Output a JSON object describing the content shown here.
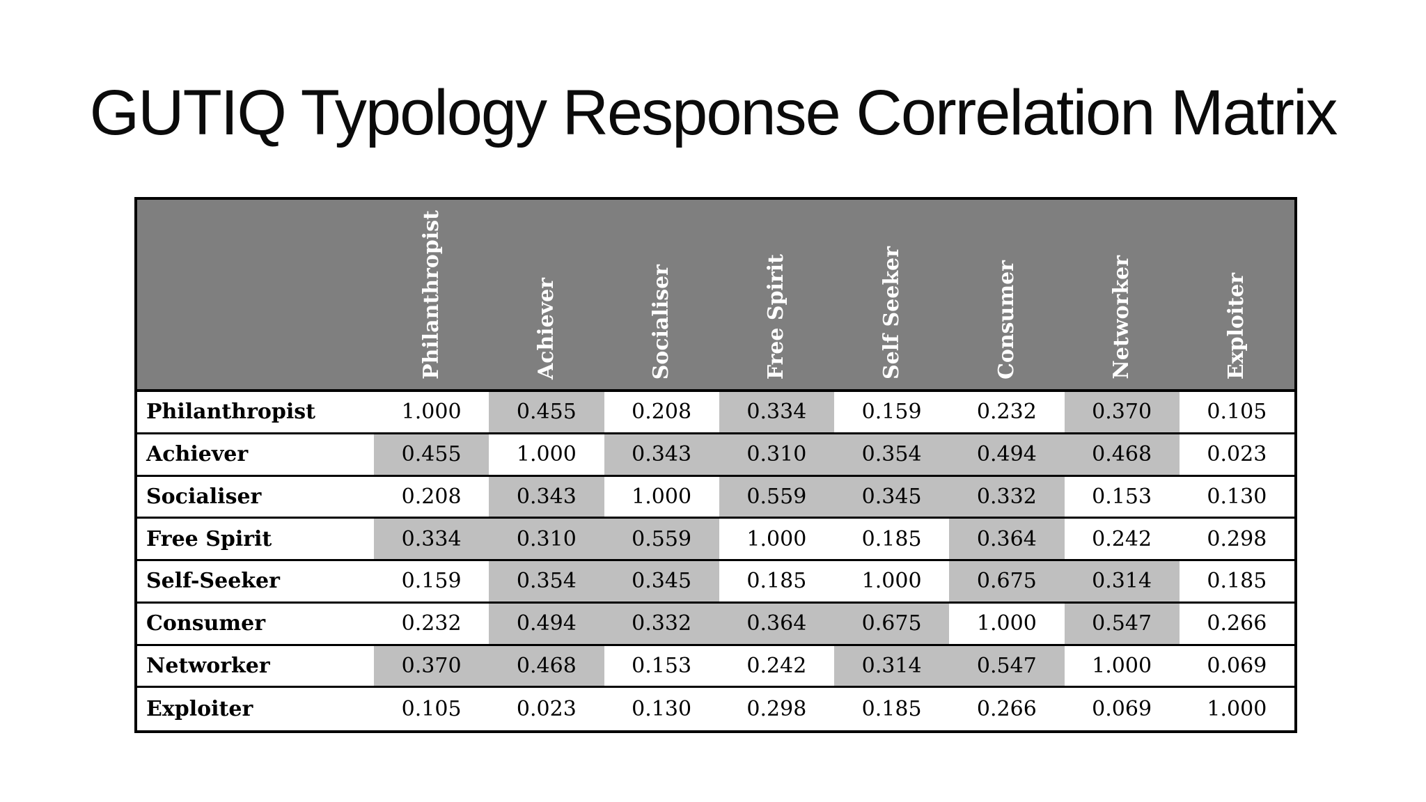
{
  "slide": {
    "title": "GUTIQ Typology Response Correlation Matrix",
    "background_color": "#ffffff"
  },
  "colors": {
    "header_bg": "#7f7f7f",
    "header_text": "#ffffff",
    "highlight_bg": "#bfbfbf",
    "cell_bg": "#ffffff",
    "cell_text": "#000000",
    "border": "#000000"
  },
  "chart_data": {
    "type": "table",
    "title": "GUTIQ Typology Response Correlation Matrix",
    "column_headers": [
      "Philanthropist",
      "Achiever",
      "Socialiser",
      "Free Spirit",
      "Self Seeker",
      "Consumer",
      "Networker",
      "Exploiter"
    ],
    "row_headers": [
      "Philanthropist",
      "Achiever",
      "Socialiser",
      "Free Spirit",
      "Self-Seeker",
      "Consumer",
      "Networker",
      "Exploiter"
    ],
    "values": [
      [
        1.0,
        0.455,
        0.208,
        0.334,
        0.159,
        0.232,
        0.37,
        0.105
      ],
      [
        0.455,
        1.0,
        0.343,
        0.31,
        0.354,
        0.494,
        0.468,
        0.023
      ],
      [
        0.208,
        0.343,
        1.0,
        0.559,
        0.345,
        0.332,
        0.153,
        0.13
      ],
      [
        0.334,
        0.31,
        0.559,
        1.0,
        0.185,
        0.364,
        0.242,
        0.298
      ],
      [
        0.159,
        0.354,
        0.345,
        0.185,
        1.0,
        0.675,
        0.314,
        0.185
      ],
      [
        0.232,
        0.494,
        0.332,
        0.364,
        0.675,
        1.0,
        0.547,
        0.266
      ],
      [
        0.37,
        0.468,
        0.153,
        0.242,
        0.314,
        0.547,
        1.0,
        0.069
      ],
      [
        0.105,
        0.023,
        0.13,
        0.298,
        0.185,
        0.266,
        0.069,
        1.0
      ]
    ],
    "decimals": 3,
    "highlight_threshold": 0.3,
    "highlight_rule": "off-diagonal values greater than 0.3 are shaded",
    "grid": "horizontal black rules between rows, no vertical rules inside",
    "legend_position": "none"
  }
}
